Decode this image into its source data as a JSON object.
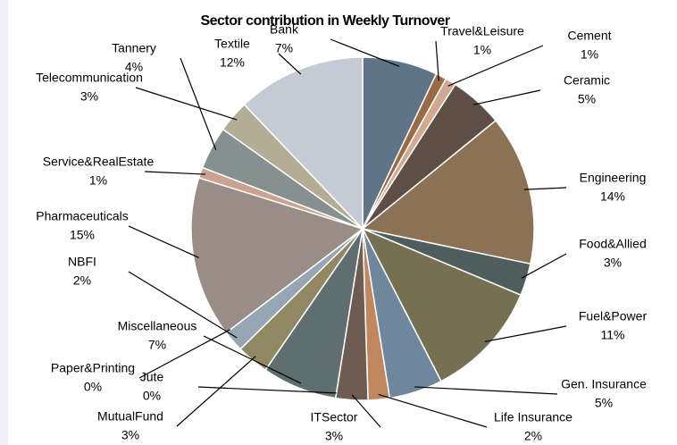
{
  "chart_data": {
    "type": "pie",
    "title": "Sector contribution in Weekly  Turnover",
    "categories": [
      "Bank",
      "Travel&Leisure",
      "Cement",
      "Ceramic",
      "Engineering",
      "Food&Allied",
      "Fuel&Power",
      "Gen. Insurance",
      "Life Insurance",
      "ITSector",
      "Jute",
      "Miscellaneous",
      "MutualFund",
      "NBFI",
      "Paper&Printing",
      "Pharmaceuticals",
      "Service&RealEstate",
      "Tannery",
      "Telecommunication",
      "Textile"
    ],
    "values": [
      7,
      1,
      1,
      5,
      14,
      3,
      11,
      5,
      2,
      3,
      0,
      7,
      3,
      2,
      0,
      15,
      1,
      4,
      3,
      12
    ],
    "value_labels": [
      "7%",
      "1%",
      "1%",
      "5%",
      "14%",
      "3%",
      "11%",
      "5%",
      "2%",
      "3%",
      "0%",
      "7%",
      "3%",
      "2%",
      "0%",
      "15%",
      "1%",
      "4%",
      "3%",
      "12%"
    ],
    "colors": [
      "#5f7487",
      "#9a6a45",
      "#d3a891",
      "#5d4f45",
      "#8b7254",
      "#4f5d5d",
      "#767052",
      "#6f879c",
      "#c0865e",
      "#6e5c52",
      "#e8c5b0",
      "#5f6e6e",
      "#8f8862",
      "#97a6b5",
      "#e0a888",
      "#9a8c87",
      "#c9a38f",
      "#86908f",
      "#b3ad96",
      "#c4cbd5"
    ]
  }
}
